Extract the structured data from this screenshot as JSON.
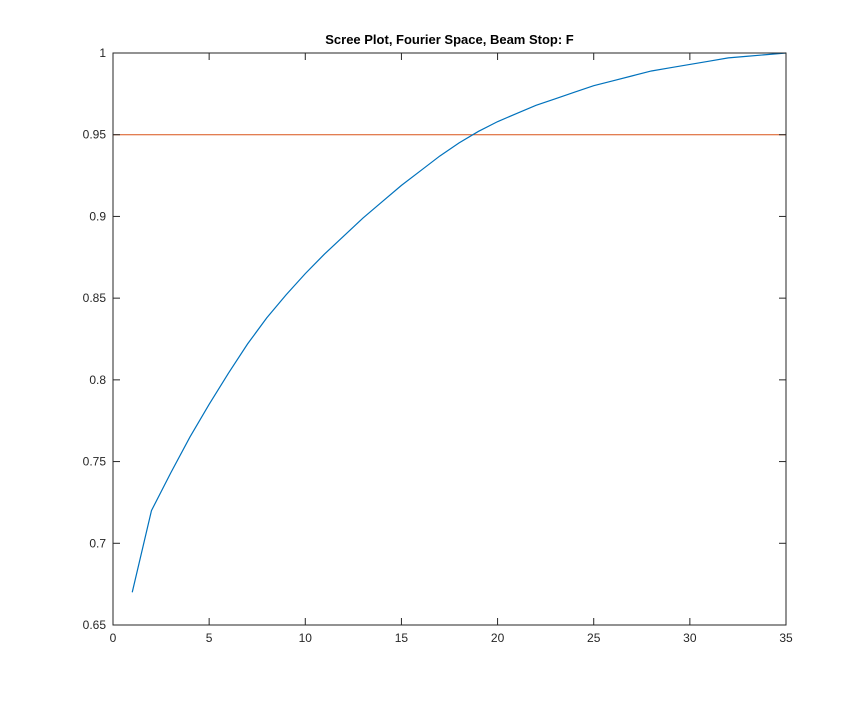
{
  "chart_data": {
    "type": "line",
    "title": "Scree Plot, Fourier Space, Beam Stop: F",
    "xlabel": "",
    "ylabel": "",
    "xlim": [
      0,
      35
    ],
    "ylim": [
      0.65,
      1
    ],
    "x_ticks": [
      0,
      5,
      10,
      15,
      20,
      25,
      30,
      35
    ],
    "y_ticks": [
      0.65,
      0.7,
      0.75,
      0.8,
      0.85,
      0.9,
      0.95,
      1
    ],
    "x_tick_labels": [
      "0",
      "5",
      "10",
      "15",
      "20",
      "25",
      "30",
      "35"
    ],
    "y_tick_labels": [
      "0.65",
      "0.7",
      "0.75",
      "0.8",
      "0.85",
      "0.9",
      "0.95",
      "1"
    ],
    "grid": false,
    "series": [
      {
        "color": "#0072BD",
        "x": [
          1,
          2,
          3,
          4,
          5,
          6,
          7,
          8,
          9,
          10,
          11,
          12,
          13,
          14,
          15,
          16,
          17,
          18,
          19,
          20,
          21,
          22,
          23,
          24,
          25,
          26,
          27,
          28,
          29,
          30,
          31,
          32,
          33,
          34,
          35
        ],
        "y": [
          0.67,
          0.72,
          0.743,
          0.765,
          0.785,
          0.804,
          0.822,
          0.838,
          0.852,
          0.865,
          0.877,
          0.888,
          0.899,
          0.909,
          0.919,
          0.928,
          0.937,
          0.945,
          0.952,
          0.958,
          0.963,
          0.968,
          0.972,
          0.976,
          0.98,
          0.983,
          0.986,
          0.989,
          0.991,
          0.993,
          0.995,
          0.997,
          0.998,
          0.999,
          1.0
        ]
      }
    ],
    "reference_lines": [
      {
        "orientation": "horizontal",
        "y": 0.95,
        "color": "#D95319"
      }
    ]
  }
}
